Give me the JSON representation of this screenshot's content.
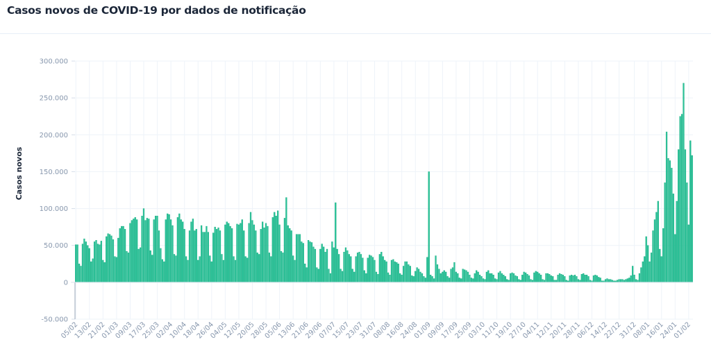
{
  "chart_data": {
    "type": "bar",
    "title": "Casos novos de COVID-19 por dados de notificação",
    "xlabel": "",
    "ylabel": "Casos novos",
    "ylim": [
      -50000,
      300000
    ],
    "yticks": [
      300000,
      250000,
      200000,
      150000,
      100000,
      50000,
      0,
      -50000
    ],
    "ytick_labels": [
      "300.000",
      "250.000",
      "200.000",
      "150.000",
      "100.000",
      "50.000",
      "0",
      "-50.000"
    ],
    "grid": true,
    "start_date": "05/02",
    "xtick_labels": [
      "05/02",
      "13/02",
      "21/02",
      "01/03",
      "09/03",
      "17/03",
      "25/03",
      "02/04",
      "10/04",
      "18/04",
      "26/04",
      "04/05",
      "12/05",
      "20/05",
      "28/05",
      "05/06",
      "13/06",
      "21/06",
      "29/06",
      "07/07",
      "15/07",
      "23/07",
      "31/07",
      "08/08",
      "16/08",
      "24/08",
      "01/09",
      "09/09",
      "17/09",
      "25/09",
      "03/10",
      "11/10",
      "19/10",
      "27/10",
      "04/11",
      "12/11",
      "20/11",
      "28/11",
      "06/12",
      "14/12",
      "22/12",
      "31/12",
      "08/01",
      "16/01",
      "24/01",
      "01/02"
    ],
    "xtick_day_index": [
      0,
      8,
      16,
      24,
      32,
      40,
      48,
      56,
      64,
      72,
      80,
      88,
      96,
      104,
      112,
      120,
      128,
      136,
      144,
      152,
      160,
      168,
      176,
      184,
      192,
      200,
      208,
      216,
      224,
      232,
      240,
      248,
      256,
      264,
      272,
      280,
      288,
      296,
      304,
      312,
      320,
      329,
      337,
      345,
      353,
      361
    ],
    "bar_color": "#2cc39a",
    "values": [
      51000,
      51000,
      25000,
      22000,
      52000,
      59000,
      55000,
      50000,
      46000,
      28000,
      32000,
      55000,
      57000,
      52000,
      51000,
      56000,
      30000,
      27000,
      62000,
      66000,
      65000,
      63000,
      58000,
      35000,
      34000,
      60000,
      73000,
      76000,
      76000,
      72000,
      42000,
      40000,
      80000,
      84000,
      86000,
      88000,
      85000,
      45000,
      47000,
      90000,
      100000,
      84000,
      87000,
      86000,
      43000,
      37000,
      85000,
      90000,
      90000,
      70000,
      46000,
      31000,
      28000,
      85000,
      93000,
      92000,
      85000,
      77000,
      38000,
      36000,
      88000,
      93000,
      85000,
      82000,
      72000,
      35000,
      30000,
      70000,
      82000,
      86000,
      70000,
      72000,
      30000,
      35000,
      77000,
      68000,
      68000,
      76000,
      68000,
      36000,
      28000,
      67000,
      75000,
      72000,
      74000,
      70000,
      38000,
      30000,
      78000,
      82000,
      80000,
      76000,
      73000,
      35000,
      30000,
      79000,
      78000,
      80000,
      85000,
      70000,
      35000,
      33000,
      80000,
      95000,
      84000,
      78000,
      70000,
      40000,
      38000,
      72000,
      82000,
      74000,
      80000,
      76000,
      40000,
      35000,
      88000,
      95000,
      90000,
      97000,
      78000,
      42000,
      40000,
      87000,
      115000,
      77000,
      73000,
      70000,
      36000,
      30000,
      65000,
      65000,
      65000,
      55000,
      53000,
      25000,
      20000,
      57000,
      55000,
      54000,
      48000,
      45000,
      20000,
      18000,
      45000,
      52000,
      48000,
      41000,
      45000,
      18000,
      12000,
      55000,
      47000,
      108000,
      45000,
      38000,
      18000,
      15000,
      41000,
      47000,
      43000,
      38000,
      35000,
      18000,
      14000,
      35000,
      40000,
      41000,
      38000,
      33000,
      16000,
      12000,
      33000,
      37000,
      36000,
      34000,
      30000,
      14000,
      11000,
      38000,
      41000,
      35000,
      30000,
      28000,
      13000,
      10000,
      30000,
      31000,
      28000,
      27000,
      25000,
      12000,
      10000,
      22000,
      28000,
      28000,
      24000,
      22000,
      9000,
      8000,
      15000,
      20000,
      18000,
      14000,
      12000,
      8000,
      6000,
      34000,
      150000,
      10000,
      8000,
      5000,
      36000,
      24000,
      18000,
      12000,
      14000,
      16000,
      14000,
      8000,
      6000,
      18000,
      20000,
      27000,
      14000,
      12000,
      6000,
      5000,
      18000,
      17000,
      16000,
      14000,
      10000,
      6000,
      5000,
      12000,
      16000,
      14000,
      10000,
      8000,
      5000,
      4000,
      14000,
      16000,
      12000,
      12000,
      10000,
      5000,
      4000,
      13000,
      15000,
      12000,
      10000,
      8000,
      4000,
      3000,
      12000,
      13000,
      12000,
      9000,
      8000,
      4000,
      3000,
      10000,
      14000,
      13000,
      11000,
      9000,
      4000,
      3000,
      13000,
      15000,
      14000,
      12000,
      10000,
      4000,
      3000,
      12000,
      12000,
      11000,
      9000,
      8000,
      3000,
      3000,
      10000,
      12000,
      11000,
      10000,
      8000,
      3000,
      2000,
      9000,
      10000,
      9000,
      10000,
      8000,
      4000,
      3000,
      11000,
      12000,
      10000,
      10000,
      8000,
      3000,
      2000,
      9000,
      10000,
      9000,
      7000,
      6000,
      2000,
      2000,
      4000,
      5000,
      4000,
      4000,
      3000,
      2000,
      2000,
      3000,
      4000,
      4000,
      4000,
      3000,
      4000,
      5000,
      6000,
      9000,
      22000,
      10000,
      4000,
      3000,
      12000,
      20000,
      28000,
      35000,
      62000,
      50000,
      28000,
      40000,
      70000,
      85000,
      95000,
      110000,
      45000,
      35000,
      73000,
      135000,
      204000,
      168000,
      165000,
      155000,
      120000,
      65000,
      110000,
      180000,
      225000,
      228000,
      270000,
      180000,
      135000,
      78000,
      192000,
      172000
    ]
  }
}
